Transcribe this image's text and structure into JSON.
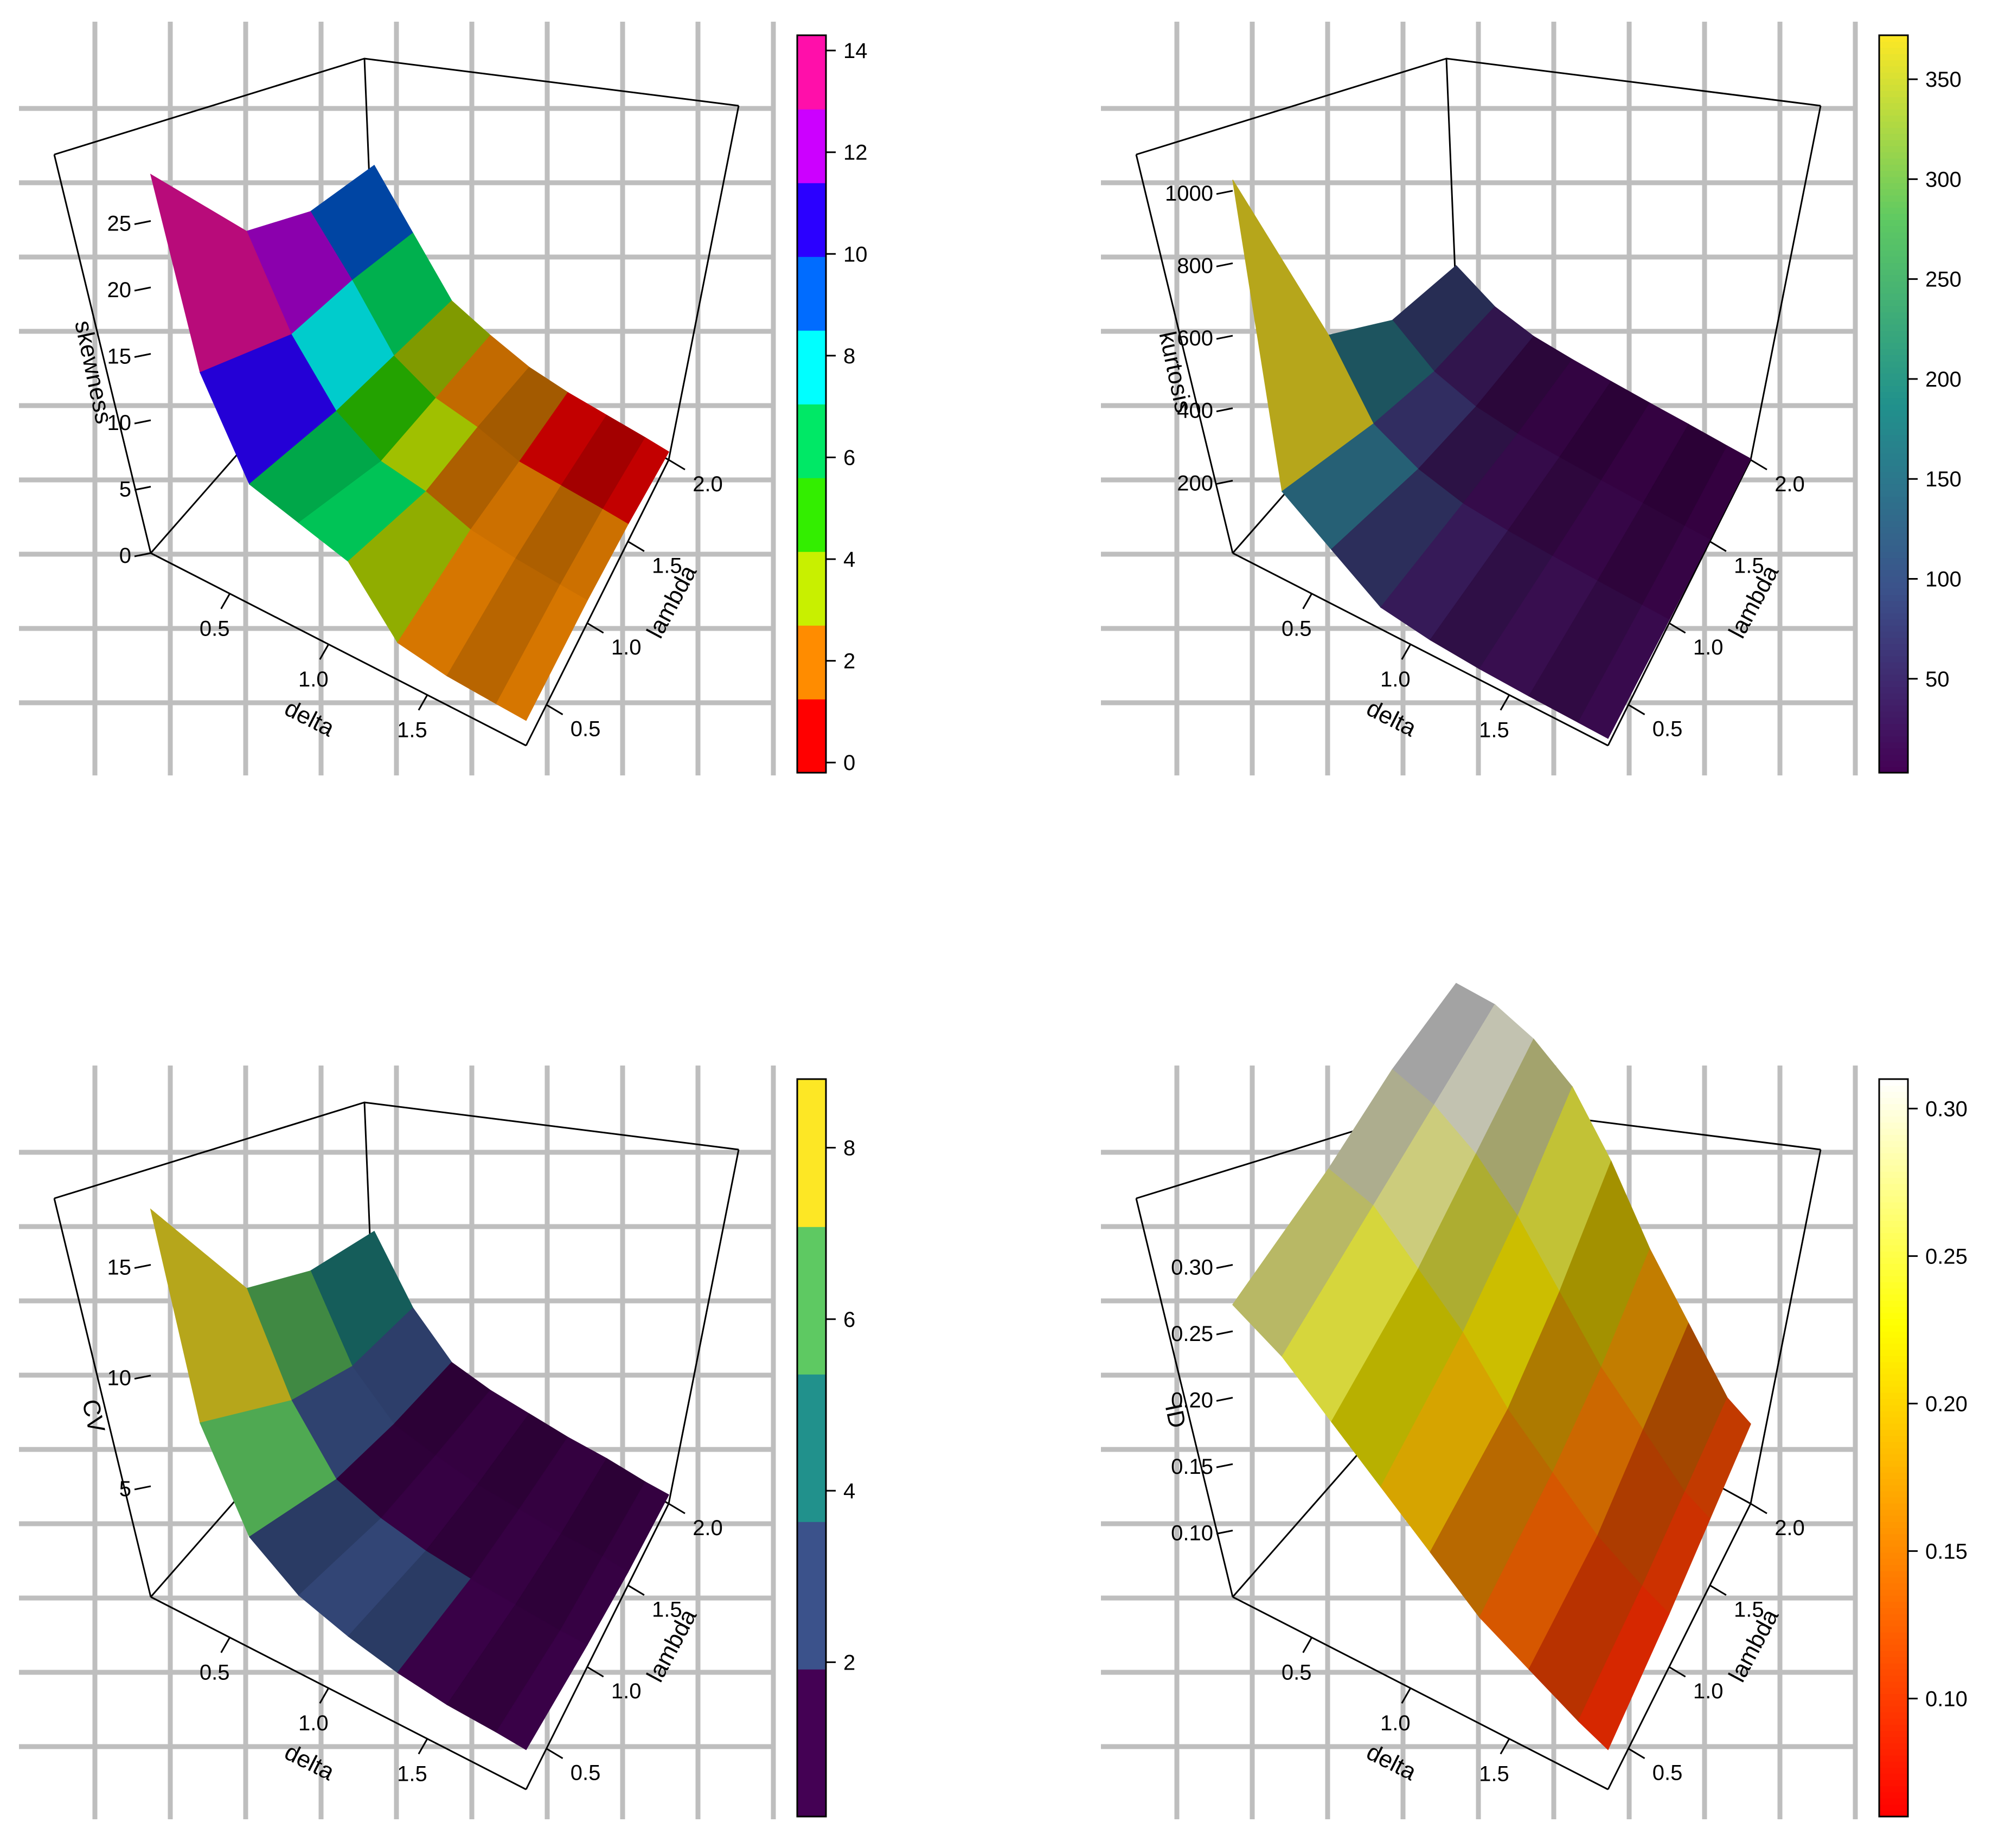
{
  "chart_data": [
    {
      "type": "surface3d",
      "panel": "top-left",
      "zlabel": "skewness",
      "xlabel": "delta",
      "ylabel": "lambda",
      "x_ticks": [
        "0.5",
        "1.0",
        "1.5"
      ],
      "y_ticks": [
        "0.5",
        "1.0",
        "1.5",
        "2.0"
      ],
      "z_ticks": [
        "0",
        "5",
        "10",
        "15",
        "20",
        "25"
      ],
      "z_tick_values": [
        0,
        5,
        10,
        15,
        20,
        25
      ],
      "zlim": [
        0,
        30
      ],
      "colorbar": {
        "ticks": [
          "0",
          "2",
          "4",
          "6",
          "8",
          "10",
          "12",
          "14"
        ],
        "tick_values": [
          0,
          2,
          4,
          6,
          8,
          10,
          12,
          14
        ],
        "range": [
          -0.2,
          14.3
        ],
        "stepped": true,
        "colors": [
          "#ff0000",
          "#ff8c00",
          "#c8f000",
          "#33ee00",
          "#00e866",
          "#00ffff",
          "#006cff",
          "#2b00ff",
          "#cc00ff",
          "#ff0faa"
        ]
      },
      "delta_values": [
        0.1,
        0.35,
        0.6,
        0.85,
        1.1,
        1.35,
        1.6,
        1.85,
        2.0
      ],
      "lambda_values": [
        0.25,
        1.0,
        1.5,
        2.0
      ],
      "grid": [
        [
          28.5,
          15.5,
          9.0,
          8.0,
          7.0,
          2.8,
          2.2,
          2.0,
          1.9
        ],
        [
          16.0,
          10.0,
          6.0,
          4.0,
          3.5,
          2.4,
          2.0,
          1.8,
          1.7
        ],
        [
          12.0,
          8.5,
          4.5,
          3.0,
          2.5,
          1.6,
          1.5,
          1.4,
          1.3
        ],
        [
          10.0,
          6.5,
          3.0,
          2.0,
          1.2,
          0.9,
          0.8,
          0.7,
          0.6
        ]
      ]
    },
    {
      "type": "surface3d",
      "panel": "top-right",
      "zlabel": "kurtosis",
      "xlabel": "delta",
      "ylabel": "lambda",
      "x_ticks": [
        "0.5",
        "1.0",
        "1.5"
      ],
      "y_ticks": [
        "0.5",
        "1.0",
        "1.5",
        "2.0"
      ],
      "z_ticks": [
        "200",
        "400",
        "600",
        "800",
        "1000"
      ],
      "z_tick_values": [
        200,
        400,
        600,
        800,
        1000
      ],
      "zlim": [
        0,
        1100
      ],
      "colorbar": {
        "ticks": [
          "50",
          "100",
          "150",
          "200",
          "250",
          "300",
          "350"
        ],
        "tick_values": [
          50,
          100,
          150,
          200,
          250,
          300,
          350
        ],
        "range": [
          3,
          372
        ],
        "stepped": false,
        "colors": [
          "#440154",
          "#3b528b",
          "#21918c",
          "#5ec962",
          "#fde725"
        ]
      },
      "delta_values": [
        0.1,
        0.35,
        0.6,
        0.85,
        1.1,
        1.35,
        1.6,
        1.85,
        2.0
      ],
      "lambda_values": [
        0.25,
        1.0,
        1.5,
        2.0
      ],
      "grid": [
        [
          1030,
          240,
          150,
          60,
          40,
          30,
          25,
          22,
          20
        ],
        [
          300,
          120,
          60,
          30,
          20,
          15,
          12,
          10,
          9
        ],
        [
          140,
          60,
          25,
          12,
          9,
          7,
          6,
          5,
          5
        ],
        [
          90,
          35,
          12,
          7,
          5,
          4,
          4,
          3,
          3
        ]
      ]
    },
    {
      "type": "surface3d",
      "panel": "bottom-left",
      "zlabel": "CV",
      "xlabel": "delta",
      "ylabel": "lambda",
      "x_ticks": [
        "0.5",
        "1.0",
        "1.5"
      ],
      "y_ticks": [
        "0.5",
        "1.0",
        "1.5",
        "2.0"
      ],
      "z_ticks": [
        "5",
        "10",
        "15"
      ],
      "z_tick_values": [
        5,
        10,
        15
      ],
      "zlim": [
        0,
        18
      ],
      "colorbar": {
        "ticks": [
          "2",
          "4",
          "6",
          "8"
        ],
        "tick_values": [
          2,
          4,
          6,
          8
        ],
        "range": [
          0.2,
          8.8
        ],
        "stepped": true,
        "colors": [
          "#440154",
          "#3b528b",
          "#21918c",
          "#5ec962",
          "#fde725"
        ]
      },
      "delta_values": [
        0.1,
        0.35,
        0.6,
        0.85,
        1.1,
        1.35,
        1.6,
        1.85,
        2.0
      ],
      "lambda_values": [
        0.25,
        1.0,
        1.5,
        2.0
      ],
      "grid": [
        [
          17.5,
          9.0,
          5.0,
          3.5,
          2.8,
          2.3,
          2.0,
          1.9,
          1.8
        ],
        [
          9.0,
          5.0,
          2.5,
          1.8,
          1.4,
          1.2,
          1.1,
          1.0,
          1.0
        ],
        [
          6.5,
          3.2,
          1.6,
          1.2,
          0.9,
          0.8,
          0.7,
          0.7,
          0.6
        ],
        [
          5.0,
          2.5,
          1.0,
          0.7,
          0.6,
          0.5,
          0.5,
          0.4,
          0.4
        ]
      ]
    },
    {
      "type": "surface3d",
      "panel": "bottom-right",
      "zlabel": "ID",
      "xlabel": "delta",
      "ylabel": "lambda",
      "x_ticks": [
        "0.5",
        "1.0",
        "1.5"
      ],
      "y_ticks": [
        "0.5",
        "1.0",
        "1.5",
        "2.0"
      ],
      "z_ticks": [
        "0.10",
        "0.15",
        "0.20",
        "0.25",
        "0.30"
      ],
      "z_tick_values": [
        0.1,
        0.15,
        0.2,
        0.25,
        0.3
      ],
      "zlim": [
        0.05,
        0.35
      ],
      "colorbar": {
        "ticks": [
          "0.10",
          "0.15",
          "0.20",
          "0.25",
          "0.30"
        ],
        "tick_values": [
          0.1,
          0.15,
          0.2,
          0.25,
          0.3
        ],
        "range": [
          0.06,
          0.31
        ],
        "stepped": false,
        "colors": [
          "#ff0000",
          "#ff8000",
          "#ffff00",
          "#ffffff"
        ]
      },
      "delta_values": [
        0.1,
        0.35,
        0.6,
        0.85,
        1.1,
        1.35,
        1.6,
        1.85,
        2.0
      ],
      "lambda_values": [
        0.25,
        1.0,
        1.5,
        2.0
      ],
      "grid": [
        [
          0.27,
          0.25,
          0.22,
          0.19,
          0.16,
          0.13,
          0.11,
          0.09,
          0.08
        ],
        [
          0.29,
          0.28,
          0.25,
          0.22,
          0.18,
          0.15,
          0.12,
          0.1,
          0.09
        ],
        [
          0.31,
          0.3,
          0.28,
          0.25,
          0.21,
          0.17,
          0.14,
          0.11,
          0.1
        ],
        [
          0.32,
          0.32,
          0.31,
          0.29,
          0.25,
          0.2,
          0.16,
          0.12,
          0.11
        ]
      ]
    }
  ]
}
